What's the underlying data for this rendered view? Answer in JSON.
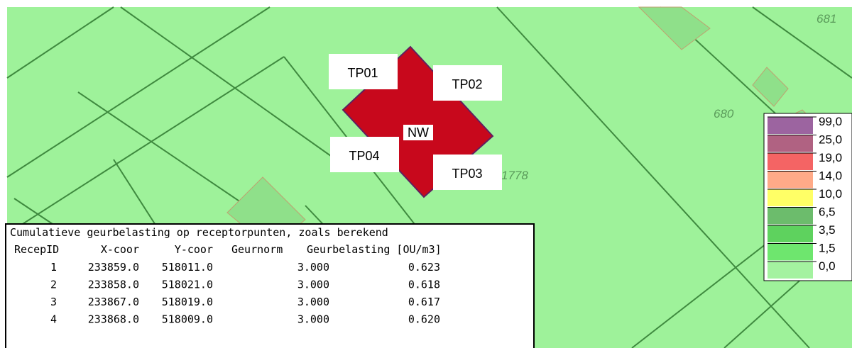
{
  "map": {
    "labels": [
      "681",
      "680",
      "1778"
    ],
    "source": {
      "name": "NW",
      "points": [
        "TP01",
        "TP02",
        "TP03",
        "TP04"
      ]
    }
  },
  "legend": {
    "items": [
      {
        "label": "99,0",
        "color": "#9c64a0"
      },
      {
        "label": "25,0",
        "color": "#b06282"
      },
      {
        "label": "19,0",
        "color": "#f46464"
      },
      {
        "label": "14,0",
        "color": "#ffaa88"
      },
      {
        "label": "10,0",
        "color": "#ffff66"
      },
      {
        "label": "6,5",
        "color": "#6cbc6c"
      },
      {
        "label": "3,5",
        "color": "#5ed25e"
      },
      {
        "label": "1,5",
        "color": "#6ee66e"
      },
      {
        "label": "0,0",
        "color": "#a4f2a0"
      }
    ]
  },
  "table": {
    "title": "Cumulatieve geurbelasting op receptorpunten, zoals berekend",
    "header": [
      "RecepID",
      "X-coor",
      "Y-coor",
      "Geurnorm",
      "Geurbelasting [OU/m3]"
    ],
    "rows": [
      [
        "1",
        "233859.0",
        "518011.0",
        "3.000",
        "0.623"
      ],
      [
        "2",
        "233858.0",
        "518021.0",
        "3.000",
        "0.618"
      ],
      [
        "3",
        "233867.0",
        "518019.0",
        "3.000",
        "0.617"
      ],
      [
        "4",
        "233868.0",
        "518009.0",
        "3.000",
        "0.620"
      ]
    ]
  }
}
